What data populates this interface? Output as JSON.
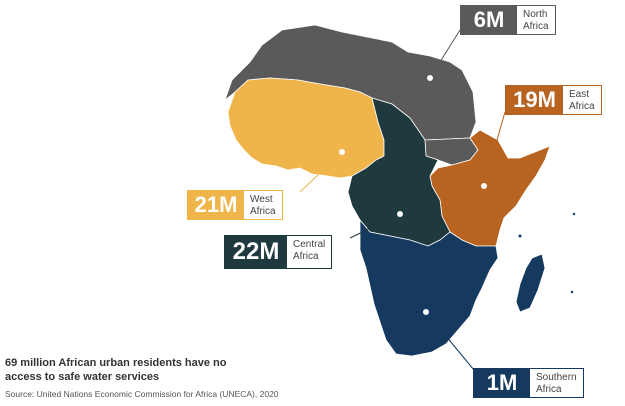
{
  "regions": [
    {
      "id": "north",
      "value": "6M",
      "name": "North\nAfrica",
      "color": "#5a5a5a"
    },
    {
      "id": "east",
      "value": "19M",
      "name": "East\nAfrica",
      "color": "#b8631f"
    },
    {
      "id": "west",
      "value": "21M",
      "name": "West\nAfrica",
      "color": "#f0b54a"
    },
    {
      "id": "central",
      "value": "22M",
      "name": "Central\nAfrica",
      "color": "#1f3a3f"
    },
    {
      "id": "south",
      "value": "1M",
      "name": "Southern\nAfrica",
      "color": "#163a5f"
    }
  ],
  "headline": "69 million African urban residents have no access to safe water services",
  "source": "Source: United Nations Economic Commission for Africa (UNECA), 2020"
}
